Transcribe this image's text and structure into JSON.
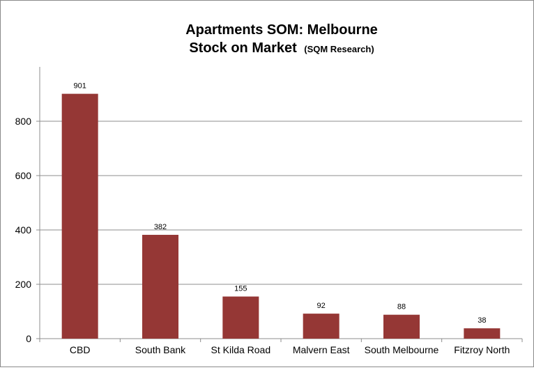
{
  "chart_data": {
    "type": "bar",
    "title": "Apartments SOM: Melbourne",
    "subtitle": "Stock on Market",
    "subtitle_note": "(SQM Research)",
    "categories": [
      "CBD",
      "South Bank",
      "St Kilda Road",
      "Malvern East",
      "South Melbourne",
      "Fitzroy North"
    ],
    "values": [
      901,
      382,
      155,
      92,
      88,
      38
    ],
    "data_labels": [
      "901",
      "382",
      "155",
      "92",
      "88",
      "38"
    ],
    "y_ticks": [
      0,
      200,
      400,
      600,
      800
    ],
    "y_tick_labels": [
      "0",
      "200",
      "400",
      "600",
      "800"
    ],
    "ylim": [
      0,
      1000
    ],
    "grid": true,
    "legend": "none",
    "bar_color": "#953735",
    "xlabel": "",
    "ylabel": ""
  }
}
